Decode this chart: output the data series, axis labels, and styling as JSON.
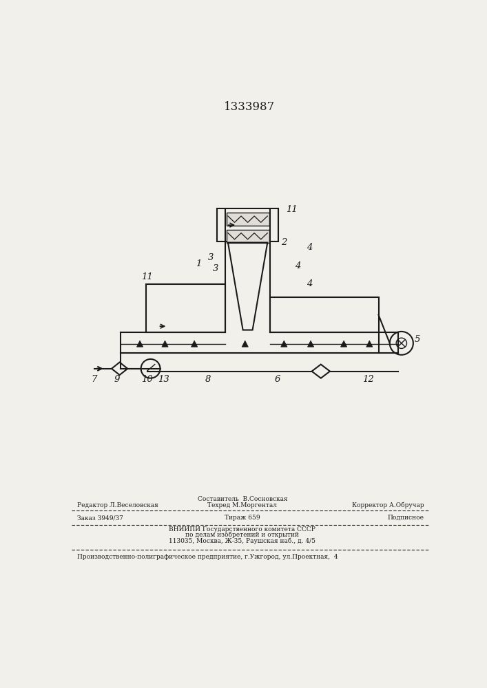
{
  "title": "1333987",
  "bg_color": "#f2f0eb",
  "line_color": "#1a1a1a",
  "footer": {
    "line1_left": "Редактор Л.Веселовская",
    "line1_center_top": "Составитель  В.Сосновская",
    "line1_center": "Техред М.Моргентал",
    "line1_right": "Корректор А.Обручар",
    "line2_left": "Заказ 3949/37",
    "line2_center": "Тираж 659",
    "line2_right": "Подписное",
    "line3": "ВНИИПИ Государственного комитета СССР",
    "line4": "по делам изобретений и открытий",
    "line5": "113035, Москва, Ж-35, Раушская наб., д. 4/5",
    "line6": "Производственно-полиграфическое предприятие, г.Ужгород, ул.Проектная,  4"
  }
}
